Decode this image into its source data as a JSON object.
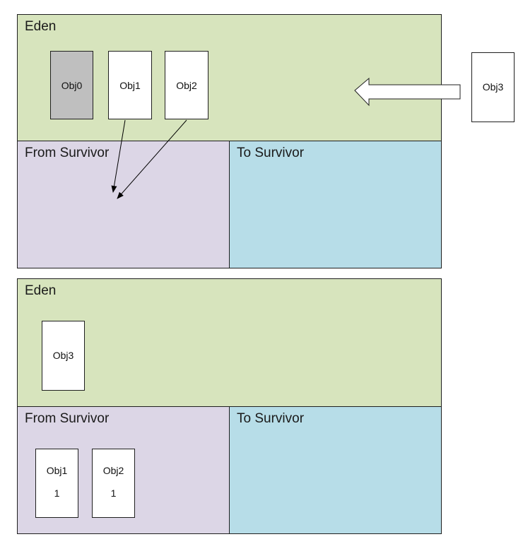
{
  "colors": {
    "eden": "#d7e4bd",
    "from_survivor": "#dcd6e6",
    "to_survivor": "#b7dde8",
    "obj_collected": "#bfbfbf",
    "obj_live": "#ffffff"
  },
  "diagram_before": {
    "eden": {
      "label": "Eden"
    },
    "from_survivor": {
      "label": "From Survivor"
    },
    "to_survivor": {
      "label": "To Survivor"
    },
    "objects": [
      {
        "name": "Obj0",
        "state": "collected"
      },
      {
        "name": "Obj1",
        "state": "live"
      },
      {
        "name": "Obj2",
        "state": "live"
      }
    ],
    "incoming_object": {
      "name": "Obj3"
    }
  },
  "diagram_after": {
    "eden": {
      "label": "Eden"
    },
    "from_survivor": {
      "label": "From Survivor"
    },
    "to_survivor": {
      "label": "To Survivor"
    },
    "eden_objects": [
      {
        "name": "Obj3"
      }
    ],
    "survivor_objects": [
      {
        "name": "Obj1",
        "age": "1"
      },
      {
        "name": "Obj2",
        "age": "1"
      }
    ]
  }
}
